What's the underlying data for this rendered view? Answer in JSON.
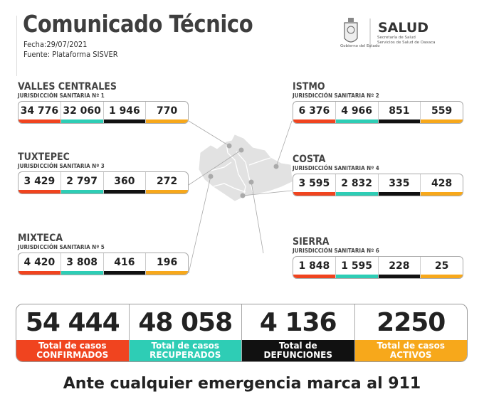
{
  "header": {
    "title": "Comunicado Técnico",
    "date": "Fecha:29/07/2021",
    "source": "Fuente: Plataforma SISVER"
  },
  "logo": {
    "brand": "SALUD",
    "line1": "Secretaría de Salud",
    "line2": "Servicios de Salud de Oaxaca",
    "seal_caption": "Gobierno del Estado"
  },
  "colors": {
    "confirmed": "#f0441f",
    "recovered": "#2ecdb5",
    "deaths": "#111111",
    "active": "#f7a81b"
  },
  "regions": [
    {
      "name": "VALLES CENTRALES",
      "jurisdiction": "JURISDICCIÓN SANITARIA Nº 1",
      "values": [
        "34 776",
        "32 060",
        "1 946",
        "770"
      ]
    },
    {
      "name": "TUXTEPEC",
      "jurisdiction": "JURISDICCIÓN SANITARIA Nº 3",
      "values": [
        "3 429",
        "2 797",
        "360",
        "272"
      ]
    },
    {
      "name": "MIXTECA",
      "jurisdiction": "JURISDICCIÓN SANITARIA Nº 5",
      "values": [
        "4 420",
        "3 808",
        "416",
        "196"
      ]
    },
    {
      "name": "ISTMO",
      "jurisdiction": "JURISDICCIÓN SANITARIA Nº 2",
      "values": [
        "6 376",
        "4 966",
        "851",
        "559"
      ]
    },
    {
      "name": "COSTA",
      "jurisdiction": "JURISDICCIÓN SANITARIA Nº 4",
      "values": [
        "3 595",
        "2 832",
        "335",
        "428"
      ]
    },
    {
      "name": "SIERRA",
      "jurisdiction": "JURISDICCIÓN SANITARIA Nº 6",
      "values": [
        "1 848",
        "1 595",
        "228",
        "25"
      ]
    }
  ],
  "totals": [
    {
      "value": "54 444",
      "line1": "Total de casos",
      "line2": "CONFIRMADOS"
    },
    {
      "value": "48 058",
      "line1": "Total de casos",
      "line2": "RECUPERADOS"
    },
    {
      "value": "4 136",
      "line1": "Total de",
      "line2": "DEFUNCIONES"
    },
    {
      "value": "2250",
      "line1": "Total de casos",
      "line2": "ACTIVOS"
    }
  ],
  "footer": "Ante cualquier emergencia marca al 911"
}
